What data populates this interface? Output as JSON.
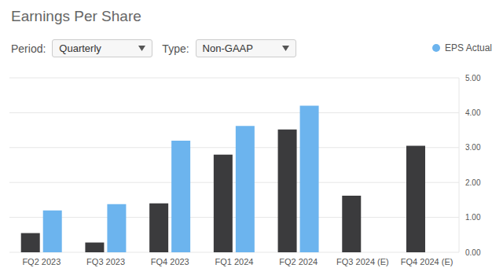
{
  "chart_data": {
    "type": "bar",
    "title": "Earnings Per Share",
    "controls": [
      {
        "label": "Period:",
        "value": "Quarterly"
      },
      {
        "label": "Type:",
        "value": "Non-GAAP"
      }
    ],
    "categories": [
      "FQ2 2023",
      "FQ3 2023",
      "FQ4 2023",
      "FQ1 2024",
      "FQ2 2024",
      "FQ3 2024 (E)",
      "FQ4 2024 (E)"
    ],
    "series": [
      {
        "color": "#3b3b3d",
        "values": [
          0.55,
          0.28,
          1.4,
          2.8,
          3.52,
          1.62,
          3.05
        ]
      },
      {
        "name": "EPS Actual",
        "color": "#6cb4ee",
        "values": [
          1.2,
          1.38,
          3.2,
          3.62,
          4.2,
          null,
          null
        ]
      }
    ],
    "ylim": [
      0,
      5
    ],
    "yticks": [
      {
        "value": 0,
        "label": "0.00"
      },
      {
        "value": 1,
        "label": "1.00"
      },
      {
        "value": 2,
        "label": "2.00"
      },
      {
        "value": 3,
        "label": "3.00"
      },
      {
        "value": 4,
        "label": "4.00"
      },
      {
        "value": 5,
        "label": "5.00"
      }
    ],
    "grid": true,
    "legend": "top-right"
  }
}
